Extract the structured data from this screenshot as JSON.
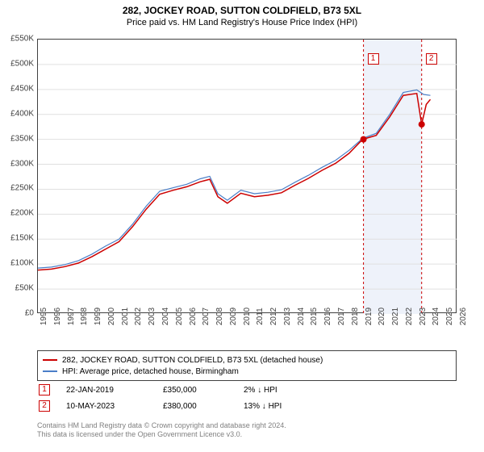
{
  "title": "282, JOCKEY ROAD, SUTTON COLDFIELD, B73 5XL",
  "subtitle": "Price paid vs. HM Land Registry's House Price Index (HPI)",
  "chart": {
    "type": "line",
    "background_color": "#ffffff",
    "border_color": "#404040",
    "grid_color": "#e0e0e0",
    "ylim": [
      0,
      550000
    ],
    "ytick_step": 50000,
    "ytick_labels": [
      "£0",
      "£50K",
      "£100K",
      "£150K",
      "£200K",
      "£250K",
      "£300K",
      "£350K",
      "£400K",
      "£450K",
      "£500K",
      "£550K"
    ],
    "xlim": [
      1995,
      2026
    ],
    "xtick_step": 1,
    "xtick_labels": [
      "1995",
      "1996",
      "1997",
      "1998",
      "1999",
      "2000",
      "2001",
      "2002",
      "2003",
      "2004",
      "2005",
      "2006",
      "2007",
      "2008",
      "2009",
      "2010",
      "2011",
      "2012",
      "2013",
      "2014",
      "2015",
      "2016",
      "2017",
      "2018",
      "2019",
      "2020",
      "2021",
      "2022",
      "2023",
      "2024",
      "2025",
      "2026"
    ],
    "series": [
      {
        "name": "property",
        "label": "282, JOCKEY ROAD, SUTTON COLDFIELD, B73 5XL (detached house)",
        "color": "#cc0000",
        "width": 1.5,
        "data": [
          [
            1995,
            88000
          ],
          [
            1996,
            90000
          ],
          [
            1997,
            95000
          ],
          [
            1998,
            102000
          ],
          [
            1999,
            115000
          ],
          [
            2000,
            130000
          ],
          [
            2001,
            145000
          ],
          [
            2002,
            175000
          ],
          [
            2003,
            210000
          ],
          [
            2004,
            240000
          ],
          [
            2005,
            248000
          ],
          [
            2006,
            255000
          ],
          [
            2007,
            265000
          ],
          [
            2007.7,
            270000
          ],
          [
            2008.3,
            235000
          ],
          [
            2009,
            222000
          ],
          [
            2010,
            242000
          ],
          [
            2011,
            235000
          ],
          [
            2012,
            238000
          ],
          [
            2013,
            243000
          ],
          [
            2014,
            258000
          ],
          [
            2015,
            272000
          ],
          [
            2016,
            288000
          ],
          [
            2017,
            302000
          ],
          [
            2018,
            322000
          ],
          [
            2019,
            350000
          ],
          [
            2020,
            358000
          ],
          [
            2021,
            395000
          ],
          [
            2022,
            438000
          ],
          [
            2023,
            442000
          ],
          [
            2023.36,
            380000
          ],
          [
            2023.7,
            420000
          ],
          [
            2024,
            430000
          ]
        ]
      },
      {
        "name": "hpi",
        "label": "HPI: Average price, detached house, Birmingham",
        "color": "#4a7ec8",
        "width": 1.2,
        "data": [
          [
            1995,
            92000
          ],
          [
            1996,
            94000
          ],
          [
            1997,
            99000
          ],
          [
            1998,
            107000
          ],
          [
            1999,
            120000
          ],
          [
            2000,
            136000
          ],
          [
            2001,
            150000
          ],
          [
            2002,
            180000
          ],
          [
            2003,
            216000
          ],
          [
            2004,
            246000
          ],
          [
            2005,
            253000
          ],
          [
            2006,
            260000
          ],
          [
            2007,
            271000
          ],
          [
            2007.7,
            276000
          ],
          [
            2008.3,
            241000
          ],
          [
            2009,
            228000
          ],
          [
            2010,
            248000
          ],
          [
            2011,
            241000
          ],
          [
            2012,
            244000
          ],
          [
            2013,
            249000
          ],
          [
            2014,
            264000
          ],
          [
            2015,
            278000
          ],
          [
            2016,
            294000
          ],
          [
            2017,
            308000
          ],
          [
            2018,
            328000
          ],
          [
            2019,
            352000
          ],
          [
            2020,
            362000
          ],
          [
            2021,
            400000
          ],
          [
            2022,
            444000
          ],
          [
            2023,
            449000
          ],
          [
            2023.5,
            440000
          ],
          [
            2024,
            438000
          ]
        ]
      }
    ],
    "sale_markers": [
      {
        "id": "1",
        "x": 2019.06,
        "y": 350000,
        "vline_color": "#cc0000",
        "vline_dash": "3,3"
      },
      {
        "id": "2",
        "x": 2023.36,
        "y": 380000,
        "vline_color": "#cc0000",
        "vline_dash": "3,3"
      }
    ],
    "shade_band": {
      "from": 2019.06,
      "to": 2023.36,
      "color": "#eef2fa"
    },
    "marker_fill": "#cc0000",
    "marker_radius": 4
  },
  "legend": {
    "border_color": "#404040"
  },
  "sales_table": [
    {
      "id": "1",
      "date": "22-JAN-2019",
      "price": "£350,000",
      "pct": "2%",
      "arrow": "↓",
      "suffix": "HPI"
    },
    {
      "id": "2",
      "date": "10-MAY-2023",
      "price": "£380,000",
      "pct": "13%",
      "arrow": "↓",
      "suffix": "HPI"
    }
  ],
  "footnote_line1": "Contains HM Land Registry data © Crown copyright and database right 2024.",
  "footnote_line2": "This data is licensed under the Open Government Licence v3.0.",
  "colors": {
    "text": "#404040",
    "footnote": "#808080",
    "badge_border": "#cc0000"
  }
}
